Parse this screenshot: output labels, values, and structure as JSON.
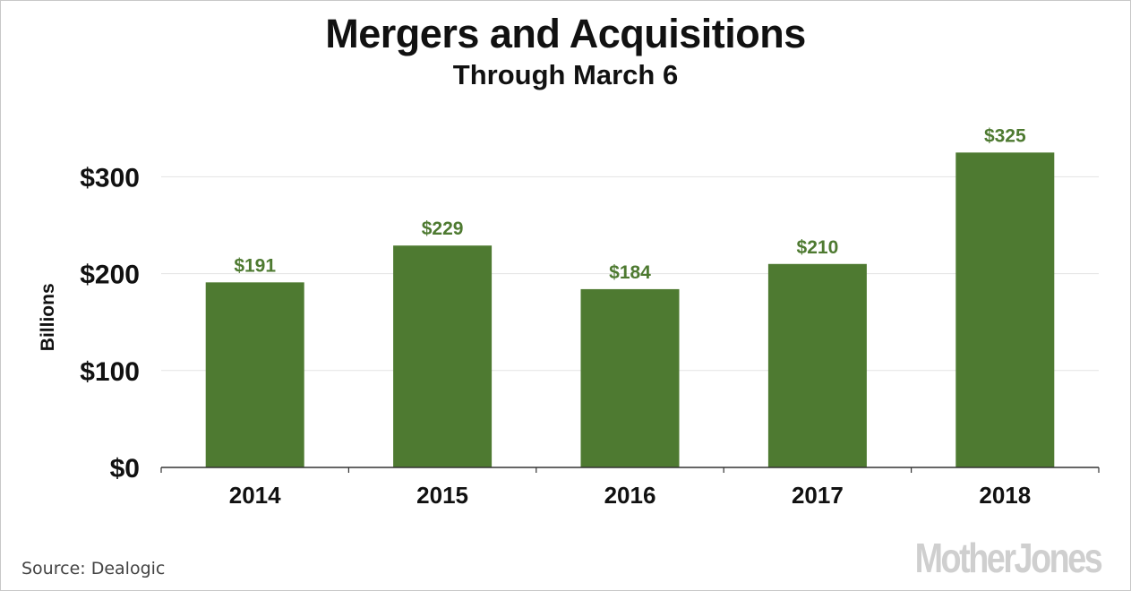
{
  "chart_data": {
    "type": "bar",
    "title": "Mergers and Acquisitions",
    "subtitle": "Through March 6",
    "categories": [
      "2014",
      "2015",
      "2016",
      "2017",
      "2018"
    ],
    "values": [
      191,
      229,
      184,
      210,
      325
    ],
    "data_labels": [
      "$191",
      "$229",
      "$184",
      "$210",
      "$325"
    ],
    "ylabel": "Billions",
    "xlabel": "",
    "ylim": [
      0,
      330
    ],
    "y_ticks": [
      0,
      100,
      200,
      300
    ],
    "y_tick_labels": [
      "$0",
      "$100",
      "$200",
      "$300"
    ],
    "grid": true,
    "bar_color": "#4e7a31",
    "label_color": "#4e7a31"
  },
  "source": "Source:  Dealogic",
  "logo_text": "MotherJones"
}
